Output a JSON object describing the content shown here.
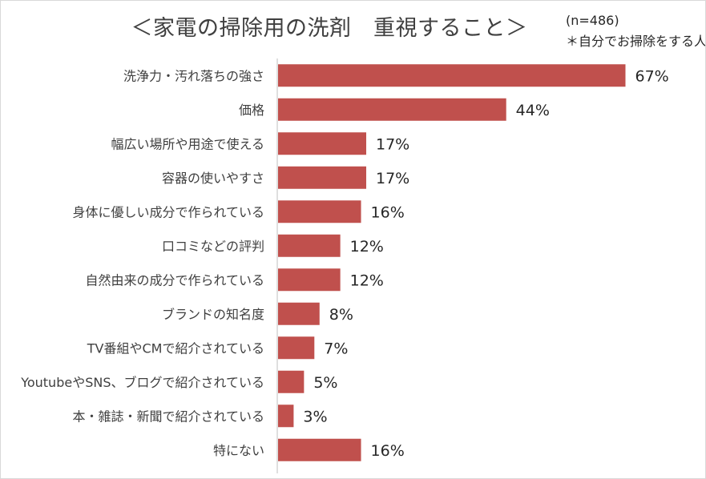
{
  "chart_data": {
    "type": "bar",
    "orientation": "horizontal",
    "title": "＜家電の掃除用の洗剤　重視すること＞",
    "annotations": [
      "(n=486)",
      "＊自分でお掃除をする人"
    ],
    "categories": [
      "洗浄力・汚れ落ちの強さ",
      "価格",
      "幅広い場所や用途で使える",
      "容器の使いやすさ",
      "身体に優しい成分で作られている",
      "口コミなどの評判",
      "自然由来の成分で作られている",
      "ブランドの知名度",
      "TV番組やCMで紹介されている",
      "YoutubeやSNS、ブログで紹介されている",
      "本・雑誌・新聞で紹介されている",
      "特にない"
    ],
    "values": [
      67,
      44,
      17,
      17,
      16,
      12,
      12,
      8,
      7,
      5,
      3,
      16
    ],
    "value_labels": [
      "67%",
      "44%",
      "17%",
      "17%",
      "16%",
      "12%",
      "12%",
      "8%",
      "7%",
      "5%",
      "3%",
      "16%"
    ],
    "unit": "%",
    "xlim": [
      0,
      100
    ],
    "bar_color": "#c0504d",
    "axis_color": "#bfbfbf",
    "grid": false,
    "legend": "none"
  }
}
